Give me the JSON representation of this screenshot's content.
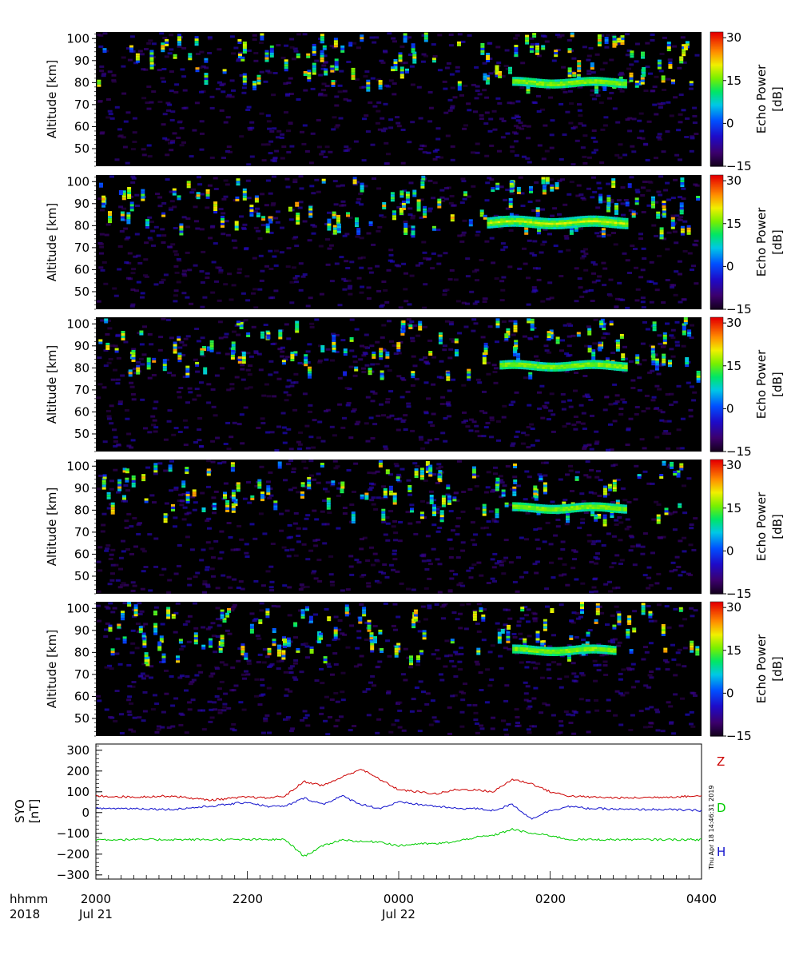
{
  "chart_data": [
    {
      "type": "heatmap",
      "panel": 1,
      "ylabel": "Altitude [km]",
      "ylim": [
        42,
        103
      ],
      "yticks": [
        "50",
        "60",
        "70",
        "80",
        "90",
        "100"
      ],
      "colorbar": {
        "label_line1": "Echo Power",
        "label_line2": "[dB]",
        "range": [
          -15,
          32
        ],
        "ticks": [
          "-15",
          "0",
          "15",
          "30"
        ]
      },
      "echo_layer": {
        "start": "0130",
        "end": "0300",
        "altitude_km": [
          79,
          82
        ]
      }
    },
    {
      "type": "heatmap",
      "panel": 2,
      "ylabel": "Altitude [km]",
      "ylim": [
        42,
        103
      ],
      "yticks": [
        "50",
        "60",
        "70",
        "80",
        "90",
        "100"
      ],
      "colorbar": {
        "label_line1": "Echo Power",
        "label_line2": "[dB]",
        "range": [
          -15,
          32
        ],
        "ticks": [
          "-15",
          "0",
          "15",
          "30"
        ]
      },
      "echo_layer": {
        "start": "0110",
        "end": "0300",
        "altitude_km": [
          80,
          84
        ]
      }
    },
    {
      "type": "heatmap",
      "panel": 3,
      "ylabel": "Altitude [km]",
      "ylim": [
        42,
        103
      ],
      "yticks": [
        "50",
        "60",
        "70",
        "80",
        "90",
        "100"
      ],
      "colorbar": {
        "label_line1": "Echo Power",
        "label_line2": "[dB]",
        "range": [
          -15,
          32
        ],
        "ticks": [
          "-15",
          "0",
          "15",
          "30"
        ]
      },
      "echo_layer": {
        "start": "0120",
        "end": "0300",
        "altitude_km": [
          80,
          83
        ]
      }
    },
    {
      "type": "heatmap",
      "panel": 4,
      "ylabel": "Altitude [km]",
      "ylim": [
        42,
        103
      ],
      "yticks": [
        "50",
        "60",
        "70",
        "80",
        "90",
        "100"
      ],
      "colorbar": {
        "label_line1": "Echo Power",
        "label_line2": "[dB]",
        "range": [
          -15,
          32
        ],
        "ticks": [
          "-15",
          "0",
          "15",
          "30"
        ]
      },
      "echo_layer": {
        "start": "0130",
        "end": "0300",
        "altitude_km": [
          80,
          83
        ]
      }
    },
    {
      "type": "heatmap",
      "panel": 5,
      "ylabel": "Altitude [km]",
      "ylim": [
        42,
        103
      ],
      "yticks": [
        "50",
        "60",
        "70",
        "80",
        "90",
        "100"
      ],
      "colorbar": {
        "label_line1": "Echo Power",
        "label_line2": "[dB]",
        "range": [
          -15,
          32
        ],
        "ticks": [
          "-15",
          "0",
          "15",
          "30"
        ]
      },
      "echo_layer": {
        "start": "0130",
        "end": "0250",
        "altitude_km": [
          80,
          83
        ]
      }
    },
    {
      "type": "line",
      "panel": 6,
      "ylabel_line1": "SYO",
      "ylabel_line2": "[nT]",
      "ylim": [
        -320,
        330
      ],
      "yticks": [
        "300",
        "200",
        "100",
        "0",
        "-100",
        "-200",
        "-300"
      ],
      "x_hours": [
        0,
        0.5,
        1,
        1.5,
        2,
        2.25,
        2.5,
        2.75,
        3,
        3.25,
        3.5,
        3.75,
        4,
        4.25,
        4.5,
        4.75,
        5,
        5.25,
        5.5,
        5.75,
        6,
        6.25,
        6.5,
        7,
        7.5,
        8
      ],
      "series": [
        {
          "name": "Z",
          "color": "#cc0000",
          "values": [
            80,
            75,
            80,
            60,
            75,
            70,
            80,
            150,
            130,
            170,
            210,
            160,
            110,
            100,
            90,
            110,
            110,
            100,
            160,
            140,
            100,
            80,
            75,
            70,
            75,
            80
          ]
        },
        {
          "name": "D",
          "color": "#00cc00",
          "values": [
            -130,
            -130,
            -130,
            -130,
            -130,
            -130,
            -130,
            -210,
            -160,
            -130,
            -140,
            -140,
            -160,
            -150,
            -150,
            -140,
            -120,
            -110,
            -80,
            -100,
            -110,
            -130,
            -130,
            -130,
            -130,
            -130
          ]
        },
        {
          "name": "H",
          "color": "#1010cc",
          "values": [
            20,
            20,
            15,
            30,
            50,
            30,
            30,
            70,
            40,
            80,
            40,
            20,
            50,
            40,
            30,
            20,
            20,
            10,
            40,
            -30,
            10,
            30,
            20,
            15,
            15,
            10
          ]
        }
      ]
    }
  ],
  "xaxis": {
    "row1_label": "hhmm",
    "row2_label": "2018",
    "ticks": [
      {
        "time": "2000",
        "date": "Jul 21"
      },
      {
        "time": "2200",
        "date": ""
      },
      {
        "time": "0000",
        "date": "Jul 22"
      },
      {
        "time": "0200",
        "date": ""
      },
      {
        "time": "0400",
        "date": ""
      }
    ]
  },
  "timestamp": "Thu Apr 18 14:46:31 2019",
  "colors": {
    "background": "#ffffff",
    "panel_background": "#000000"
  }
}
